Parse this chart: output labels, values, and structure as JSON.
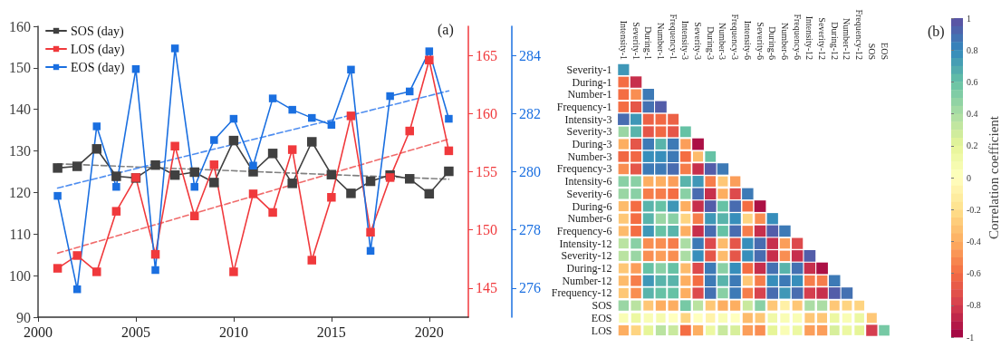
{
  "chart_data": [
    {
      "type": "line",
      "annotations": [
        "(a)"
      ],
      "legend": "top left",
      "grid": false,
      "marker": "square",
      "xlim": [
        2000,
        2022
      ],
      "xticks": [
        2000,
        2005,
        2010,
        2015,
        2020
      ],
      "ylim": [
        90,
        160
      ],
      "yticks": [
        90,
        100,
        110,
        120,
        130,
        140,
        150,
        160
      ],
      "y2lim": [
        142.5,
        167.5
      ],
      "y2ticks": [
        145,
        150,
        155,
        160,
        165
      ],
      "y3lim": [
        275,
        285
      ],
      "y3ticks": [
        276,
        278,
        280,
        282,
        284
      ],
      "series": [
        {
          "name": "SOS (day)",
          "color": "#404040",
          "axis": "y",
          "x": [
            2001,
            2002,
            2003,
            2004,
            2005,
            2006,
            2007,
            2008,
            2009,
            2010,
            2011,
            2012,
            2013,
            2014,
            2015,
            2016,
            2017,
            2018,
            2019,
            2020,
            2021
          ],
          "values": [
            125.9,
            126.3,
            130.5,
            123.9,
            123.5,
            126.6,
            124.2,
            124.9,
            122.4,
            132.5,
            125.0,
            129.4,
            122.2,
            132.2,
            124.3,
            119.8,
            122.7,
            124.2,
            123.3,
            119.7,
            125.1
          ]
        },
        {
          "name": "LOS (day)",
          "color": "#f0393c",
          "axis": "y2",
          "x": [
            2001,
            2002,
            2003,
            2004,
            2005,
            2006,
            2007,
            2008,
            2009,
            2010,
            2011,
            2012,
            2013,
            2014,
            2015,
            2016,
            2017,
            2018,
            2019,
            2020,
            2021
          ],
          "values": [
            146.7,
            147.8,
            146.4,
            151.6,
            154.5,
            147.9,
            157.2,
            151.2,
            155.6,
            146.4,
            153.1,
            151.5,
            156.9,
            147.4,
            152.8,
            159.8,
            149.8,
            154.5,
            158.5,
            164.6,
            156.8
          ]
        },
        {
          "name": "EOS (day)",
          "color": "#1a6fe0",
          "axis": "y3",
          "x": [
            2001,
            2002,
            2003,
            2004,
            2005,
            2006,
            2007,
            2008,
            2009,
            2010,
            2011,
            2012,
            2013,
            2014,
            2015,
            2016,
            2017,
            2018,
            2019,
            2020,
            2021
          ],
          "values": [
            279.17,
            275.96,
            281.56,
            279.48,
            283.53,
            276.62,
            284.24,
            279.48,
            281.09,
            281.82,
            280.21,
            282.52,
            282.13,
            281.85,
            281.61,
            283.51,
            277.28,
            282.6,
            282.76,
            284.14,
            281.82
          ]
        },
        {
          "type": "line",
          "color": "#808080",
          "axis": "y",
          "marker": "none",
          "line_style": "dashed",
          "x": [
            2001,
            2021
          ],
          "values": [
            126.9,
            123.2
          ]
        },
        {
          "type": "line",
          "color": "#f06b6b",
          "axis": "y2",
          "marker": "none",
          "line_style": "dashed",
          "x": [
            2001,
            2021
          ],
          "values": [
            148.0,
            157.8
          ]
        },
        {
          "type": "line",
          "color": "#4f8ef0",
          "axis": "y3",
          "marker": "none",
          "line_style": "dashed",
          "x": [
            2001,
            2021
          ],
          "values": [
            279.44,
            282.78
          ]
        }
      ]
    },
    {
      "type": "heatmap",
      "annotations": [
        "(b)"
      ],
      "clabel": "Correlation coefficient",
      "clim": [
        -1,
        1
      ],
      "cticks": [
        -1,
        -0.8,
        -0.6,
        -0.4,
        -0.2,
        0,
        0.2,
        0.4,
        0.6,
        0.8,
        1
      ],
      "categories": [
        "Intensity-1",
        "Severity-1",
        "During-1",
        "Number-1",
        "Frequency-1",
        "Intensity-3",
        "Severity-3",
        "During-3",
        "Number-3",
        "Frequency-3",
        "Intensity-6",
        "Severity-6",
        "During-6",
        "Number-6",
        "Frequency-6",
        "Intensity-12",
        "Severity-12",
        "During-12",
        "Number-12",
        "Frequency-12",
        "SOS",
        "EOS"
      ],
      "y_categories": [
        "Severity-1",
        "During-1",
        "Number-1",
        "Frequency-1",
        "Intensity-3",
        "Severity-3",
        "During-3",
        "Number-3",
        "Frequency-3",
        "Intensity-6",
        "Severity-6",
        "During-6",
        "Number-6",
        "Frequency-6",
        "Intensity-12",
        "Severity-12",
        "During-12",
        "Number-12",
        "Frequency-12",
        "SOS",
        "EOS",
        "LOS"
      ],
      "cells": [
        [
          0.75,
          null,
          null,
          null,
          null,
          null,
          null,
          null,
          null,
          null,
          null,
          null,
          null,
          null,
          null,
          null,
          null,
          null,
          null,
          null,
          null,
          null
        ],
        [
          -0.6,
          -0.85,
          null,
          null,
          null,
          null,
          null,
          null,
          null,
          null,
          null,
          null,
          null,
          null,
          null,
          null,
          null,
          null,
          null,
          null,
          null,
          null
        ],
        [
          -0.6,
          -0.5,
          0.85,
          null,
          null,
          null,
          null,
          null,
          null,
          null,
          null,
          null,
          null,
          null,
          null,
          null,
          null,
          null,
          null,
          null,
          null,
          null
        ],
        [
          -0.6,
          -0.7,
          0.88,
          0.95,
          null,
          null,
          null,
          null,
          null,
          null,
          null,
          null,
          null,
          null,
          null,
          null,
          null,
          null,
          null,
          null,
          null,
          null
        ],
        [
          0.9,
          0.75,
          -0.65,
          -0.62,
          -0.65,
          null,
          null,
          null,
          null,
          null,
          null,
          null,
          null,
          null,
          null,
          null,
          null,
          null,
          null,
          null,
          null,
          null
        ],
        [
          0.45,
          0.65,
          -0.7,
          -0.62,
          -0.7,
          0.6,
          null,
          null,
          null,
          null,
          null,
          null,
          null,
          null,
          null,
          null,
          null,
          null,
          null,
          null,
          null,
          null
        ],
        [
          -0.4,
          -0.7,
          0.85,
          0.65,
          0.85,
          -0.45,
          -0.95,
          null,
          null,
          null,
          null,
          null,
          null,
          null,
          null,
          null,
          null,
          null,
          null,
          null,
          null,
          null
        ],
        [
          -0.62,
          -0.62,
          0.78,
          0.78,
          0.85,
          -0.6,
          -0.35,
          0.6,
          null,
          null,
          null,
          null,
          null,
          null,
          null,
          null,
          null,
          null,
          null,
          null,
          null,
          null
        ],
        [
          -0.5,
          -0.7,
          0.85,
          0.85,
          0.9,
          -0.55,
          -0.85,
          0.95,
          0.85,
          null,
          null,
          null,
          null,
          null,
          null,
          null,
          null,
          null,
          null,
          null,
          null,
          null
        ],
        [
          0.5,
          0.5,
          -0.4,
          -0.4,
          -0.45,
          0.65,
          0.75,
          -0.55,
          -0.3,
          -0.45,
          null,
          null,
          null,
          null,
          null,
          null,
          null,
          null,
          null,
          null,
          null,
          null
        ],
        [
          0.45,
          0.5,
          -0.55,
          -0.55,
          -0.6,
          0.5,
          0.9,
          -0.85,
          -0.4,
          -0.75,
          0.85,
          null,
          null,
          null,
          null,
          null,
          null,
          null,
          null,
          null,
          null,
          null
        ],
        [
          -0.35,
          -0.6,
          0.65,
          0.6,
          0.75,
          -0.4,
          -0.85,
          0.95,
          0.6,
          0.9,
          -0.6,
          -0.95,
          null,
          null,
          null,
          null,
          null,
          null,
          null,
          null,
          null,
          null
        ],
        [
          -0.3,
          -0.6,
          0.65,
          0.45,
          0.5,
          -0.25,
          -0.55,
          0.75,
          0.65,
          0.78,
          -0.25,
          -0.5,
          0.78,
          null,
          null,
          null,
          null,
          null,
          null,
          null,
          null,
          null
        ],
        [
          -0.35,
          -0.6,
          0.75,
          0.6,
          0.65,
          -0.4,
          -0.85,
          0.9,
          0.6,
          0.9,
          -0.55,
          -0.85,
          0.95,
          0.85,
          null,
          null,
          null,
          null,
          null,
          null,
          null,
          null
        ],
        [
          0.35,
          0.5,
          -0.5,
          -0.5,
          -0.55,
          0.4,
          0.85,
          -0.75,
          -0.35,
          -0.7,
          0.78,
          0.9,
          -0.85,
          -0.45,
          -0.75,
          null,
          null,
          null,
          null,
          null,
          null,
          null
        ],
        [
          0.35,
          0.45,
          -0.5,
          -0.45,
          -0.5,
          0.4,
          0.78,
          -0.7,
          -0.35,
          -0.7,
          0.78,
          0.9,
          -0.85,
          -0.5,
          -0.85,
          0.95,
          null,
          null,
          null,
          null,
          null,
          null
        ],
        [
          -0.3,
          -0.45,
          0.6,
          0.5,
          0.6,
          -0.35,
          -0.75,
          0.85,
          0.5,
          0.78,
          -0.6,
          -0.85,
          0.88,
          0.65,
          0.88,
          -0.85,
          -0.95,
          null,
          null,
          null,
          null,
          null
        ],
        [
          -0.35,
          -0.55,
          0.75,
          0.65,
          0.65,
          -0.4,
          -0.6,
          0.85,
          0.65,
          0.85,
          -0.3,
          -0.55,
          0.78,
          0.85,
          0.78,
          -0.55,
          -0.55,
          0.85,
          null,
          null,
          null,
          null
        ],
        [
          -0.3,
          -0.5,
          0.65,
          0.6,
          0.6,
          -0.4,
          -0.75,
          0.88,
          0.5,
          0.85,
          -0.55,
          -0.78,
          0.9,
          0.75,
          0.9,
          -0.8,
          -0.85,
          0.95,
          0.88,
          null,
          null,
          null
        ],
        [
          0.45,
          0.35,
          -0.3,
          -0.4,
          -0.4,
          0.55,
          0.35,
          -0.3,
          -0.4,
          -0.4,
          0.3,
          0.5,
          -0.3,
          -0.1,
          -0.3,
          0.4,
          0.4,
          -0.3,
          -0.25,
          -0.25,
          null,
          null
        ],
        [
          0.05,
          0.15,
          0.05,
          0.08,
          0,
          -0.25,
          0,
          -0.08,
          0.05,
          0,
          -0.35,
          -0.3,
          0.12,
          0.05,
          0.05,
          -0.3,
          -0.3,
          0.15,
          0.05,
          0.15,
          -0.3,
          null
        ],
        [
          -0.4,
          -0.25,
          0.2,
          0.35,
          0.3,
          -0.6,
          -0.4,
          0.15,
          0.3,
          0.25,
          -0.45,
          -0.5,
          0.2,
          0.05,
          0.15,
          -0.45,
          -0.45,
          0.25,
          0.15,
          0.2,
          -0.8,
          0.55
        ]
      ]
    }
  ]
}
